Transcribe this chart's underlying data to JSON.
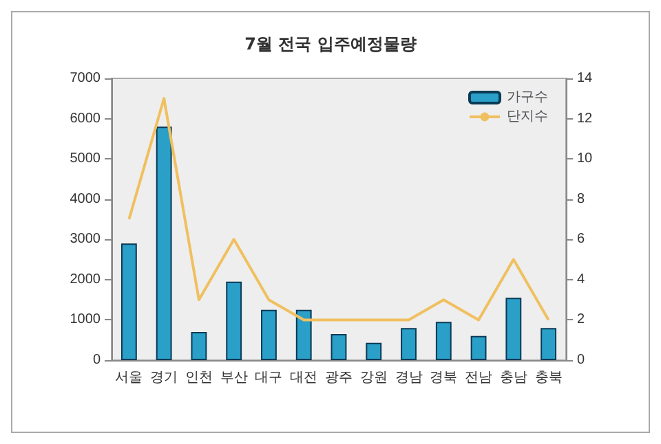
{
  "chart_data": {
    "type": "bar",
    "title": "7월 전국 입주예정물량",
    "categories": [
      "서울",
      "경기",
      "인천",
      "부산",
      "대구",
      "대전",
      "광주",
      "강원",
      "경남",
      "경북",
      "전남",
      "충남",
      "충북"
    ],
    "series": [
      {
        "name": "가구수",
        "color": "#2a9fc8",
        "values": [
          2900,
          5800,
          700,
          1950,
          1250,
          1250,
          650,
          430,
          800,
          950,
          600,
          1550,
          800
        ]
      },
      {
        "name": "단지수",
        "type": "line",
        "axis": "y2",
        "color": "#f0c060",
        "marker": "none",
        "values": [
          7,
          13,
          3,
          6,
          3,
          2,
          2,
          2,
          2,
          3,
          2,
          5,
          2
        ]
      }
    ],
    "ylim": [
      0,
      7000
    ],
    "yticks": [
      0,
      1000,
      2000,
      3000,
      4000,
      5000,
      6000,
      7000
    ],
    "y2lim": [
      0,
      14
    ],
    "y2ticks": [
      0,
      2,
      4,
      6,
      8,
      10,
      12,
      14
    ],
    "grid": false,
    "legend": "top right"
  }
}
